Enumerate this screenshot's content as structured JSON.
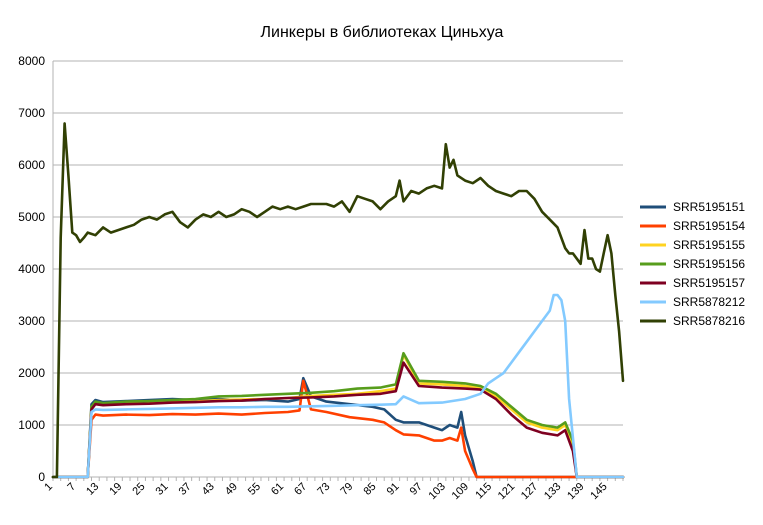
{
  "chart_data": {
    "type": "line",
    "title": "Линкеры в библиотеках Циньхуа",
    "xlabel": "",
    "ylabel": "",
    "xlim": [
      1,
      149
    ],
    "ylim": [
      0,
      8000
    ],
    "yticks": [
      0,
      1000,
      2000,
      3000,
      4000,
      5000,
      6000,
      7000,
      8000
    ],
    "xticks": [
      1,
      7,
      13,
      19,
      25,
      31,
      37,
      43,
      49,
      55,
      61,
      67,
      73,
      79,
      85,
      91,
      97,
      103,
      109,
      115,
      121,
      127,
      133,
      139,
      145
    ],
    "grid": "horizontal",
    "legend_position": "right",
    "series": [
      {
        "name": "SRR5195151",
        "color": "#1f4e79",
        "x": [
          1,
          10,
          11,
          12,
          14,
          20,
          26,
          32,
          38,
          44,
          50,
          56,
          62,
          65,
          66,
          68,
          72,
          78,
          84,
          87,
          90,
          92,
          96,
          100,
          102,
          104,
          106,
          107,
          108,
          110,
          111,
          149
        ],
        "y": [
          0,
          0,
          1400,
          1480,
          1440,
          1460,
          1480,
          1500,
          1480,
          1500,
          1470,
          1480,
          1450,
          1500,
          1900,
          1550,
          1450,
          1400,
          1350,
          1300,
          1100,
          1050,
          1050,
          950,
          900,
          1000,
          950,
          1250,
          800,
          300,
          0,
          0
        ]
      },
      {
        "name": "SRR5195154",
        "color": "#ff4000",
        "x": [
          1,
          10,
          11,
          12,
          14,
          20,
          26,
          32,
          38,
          44,
          50,
          56,
          62,
          65,
          66,
          68,
          72,
          78,
          84,
          87,
          90,
          92,
          96,
          100,
          102,
          104,
          106,
          107,
          108,
          110,
          111,
          149
        ],
        "y": [
          0,
          0,
          1100,
          1200,
          1180,
          1200,
          1190,
          1210,
          1200,
          1220,
          1200,
          1230,
          1250,
          1280,
          1850,
          1300,
          1250,
          1150,
          1100,
          1050,
          900,
          820,
          800,
          700,
          700,
          750,
          700,
          950,
          500,
          150,
          0,
          0
        ]
      },
      {
        "name": "SRR5195155",
        "color": "#ffd320",
        "x": [
          1,
          10,
          11,
          12,
          14,
          20,
          26,
          32,
          38,
          44,
          50,
          56,
          62,
          68,
          74,
          80,
          86,
          90,
          92,
          96,
          102,
          108,
          112,
          116,
          120,
          124,
          128,
          132,
          134,
          136,
          137,
          149
        ],
        "y": [
          0,
          0,
          1350,
          1420,
          1400,
          1430,
          1420,
          1450,
          1450,
          1480,
          1490,
          1500,
          1520,
          1560,
          1580,
          1600,
          1650,
          1700,
          2350,
          1800,
          1780,
          1750,
          1720,
          1550,
          1300,
          1050,
          950,
          900,
          1000,
          600,
          0,
          0
        ]
      },
      {
        "name": "SRR5195156",
        "color": "#579d1c",
        "x": [
          1,
          10,
          11,
          12,
          14,
          20,
          26,
          32,
          38,
          44,
          50,
          56,
          62,
          68,
          74,
          80,
          86,
          90,
          92,
          96,
          102,
          108,
          112,
          116,
          120,
          124,
          128,
          132,
          134,
          136,
          137,
          149
        ],
        "y": [
          0,
          0,
          1350,
          1450,
          1420,
          1450,
          1460,
          1480,
          1500,
          1550,
          1560,
          1580,
          1600,
          1620,
          1650,
          1700,
          1720,
          1780,
          2380,
          1850,
          1830,
          1800,
          1750,
          1600,
          1350,
          1100,
          1000,
          950,
          1050,
          700,
          0,
          0
        ]
      },
      {
        "name": "SRR5195157",
        "color": "#7e0021",
        "x": [
          1,
          10,
          11,
          12,
          14,
          20,
          26,
          32,
          38,
          44,
          50,
          56,
          62,
          68,
          74,
          80,
          86,
          90,
          92,
          96,
          102,
          108,
          112,
          116,
          120,
          124,
          128,
          132,
          134,
          136,
          137,
          149
        ],
        "y": [
          0,
          0,
          1300,
          1400,
          1380,
          1400,
          1410,
          1430,
          1440,
          1460,
          1470,
          1500,
          1520,
          1530,
          1550,
          1580,
          1600,
          1650,
          2200,
          1750,
          1720,
          1700,
          1680,
          1500,
          1200,
          950,
          850,
          800,
          900,
          500,
          0,
          0
        ]
      },
      {
        "name": "SRR5878212",
        "color": "#83caff",
        "x": [
          1,
          10,
          11,
          12,
          14,
          20,
          26,
          32,
          38,
          44,
          50,
          56,
          62,
          68,
          74,
          80,
          86,
          90,
          92,
          96,
          102,
          108,
          112,
          114,
          116,
          118,
          120,
          122,
          124,
          126,
          128,
          130,
          131,
          132,
          133,
          134,
          135,
          137,
          149
        ],
        "y": [
          0,
          0,
          1250,
          1300,
          1290,
          1300,
          1310,
          1320,
          1330,
          1340,
          1340,
          1350,
          1350,
          1360,
          1370,
          1380,
          1390,
          1400,
          1550,
          1420,
          1430,
          1500,
          1600,
          1800,
          1900,
          2000,
          2200,
          2400,
          2600,
          2800,
          3000,
          3200,
          3500,
          3500,
          3400,
          3000,
          1500,
          0,
          0
        ]
      },
      {
        "name": "SRR5878216",
        "color": "#314004",
        "x": [
          1,
          2,
          3,
          4,
          5,
          6,
          7,
          8,
          9,
          10,
          12,
          14,
          16,
          18,
          20,
          22,
          24,
          26,
          28,
          30,
          32,
          34,
          36,
          38,
          40,
          42,
          44,
          46,
          48,
          50,
          52,
          54,
          56,
          58,
          60,
          62,
          64,
          66,
          68,
          70,
          72,
          74,
          76,
          78,
          80,
          82,
          84,
          86,
          88,
          90,
          91,
          92,
          94,
          96,
          98,
          100,
          102,
          103,
          104,
          105,
          106,
          108,
          110,
          112,
          114,
          116,
          118,
          120,
          122,
          124,
          126,
          128,
          130,
          132,
          134,
          135,
          136,
          138,
          139,
          140,
          141,
          142,
          143,
          144,
          145,
          146,
          147,
          148,
          149
        ],
        "y": [
          0,
          0,
          4600,
          6800,
          5800,
          4700,
          4650,
          4520,
          4600,
          4700,
          4650,
          4800,
          4700,
          4750,
          4800,
          4850,
          4950,
          5000,
          4950,
          5050,
          5100,
          4900,
          4800,
          4950,
          5050,
          5000,
          5100,
          5000,
          5050,
          5150,
          5100,
          5000,
          5100,
          5200,
          5150,
          5200,
          5150,
          5200,
          5250,
          5250,
          5250,
          5200,
          5300,
          5100,
          5400,
          5350,
          5300,
          5150,
          5300,
          5400,
          5700,
          5300,
          5500,
          5450,
          5550,
          5600,
          5550,
          6400,
          5950,
          6100,
          5800,
          5700,
          5650,
          5750,
          5600,
          5500,
          5450,
          5400,
          5500,
          5500,
          5350,
          5100,
          4950,
          4800,
          4400,
          4300,
          4300,
          4100,
          4750,
          4200,
          4200,
          4000,
          3950,
          4300,
          4650,
          4300,
          3500,
          2800,
          1850
        ]
      }
    ]
  }
}
